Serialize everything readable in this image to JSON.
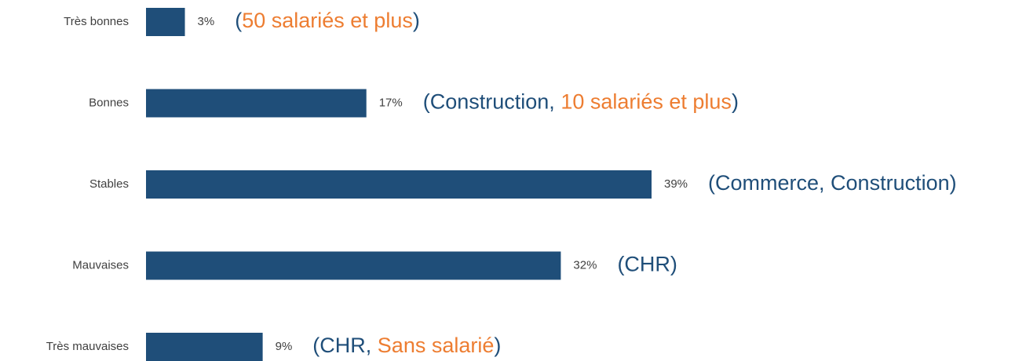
{
  "chart_data": {
    "type": "bar",
    "orientation": "horizontal",
    "categories": [
      "Très bonnes",
      "Bonnes",
      "Stables",
      "Mauvaises",
      "Très mauvaises"
    ],
    "values": [
      3,
      17,
      39,
      32,
      9
    ],
    "value_labels": [
      "3%",
      "17%",
      "39%",
      "32%",
      "9%"
    ],
    "color": "#1f4e79",
    "annotations": [
      [
        {
          "text": "(",
          "color": "#1f4e79"
        },
        {
          "text": "50 salariés et plus",
          "color": "#ed7d31"
        },
        {
          "text": ")",
          "color": "#1f4e79"
        }
      ],
      [
        {
          "text": "(Construction, ",
          "color": "#1f4e79"
        },
        {
          "text": "10 salariés et plus",
          "color": "#ed7d31"
        },
        {
          "text": ")",
          "color": "#1f4e79"
        }
      ],
      [
        {
          "text": "(Commerce, Construction)",
          "color": "#1f4e79"
        }
      ],
      [
        {
          "text": "(CHR)",
          "color": "#1f4e79"
        }
      ],
      [
        {
          "text": "(CHR, ",
          "color": "#1f4e79"
        },
        {
          "text": "Sans salarié",
          "color": "#ed7d31"
        },
        {
          "text": ")",
          "color": "#1f4e79"
        }
      ]
    ]
  }
}
